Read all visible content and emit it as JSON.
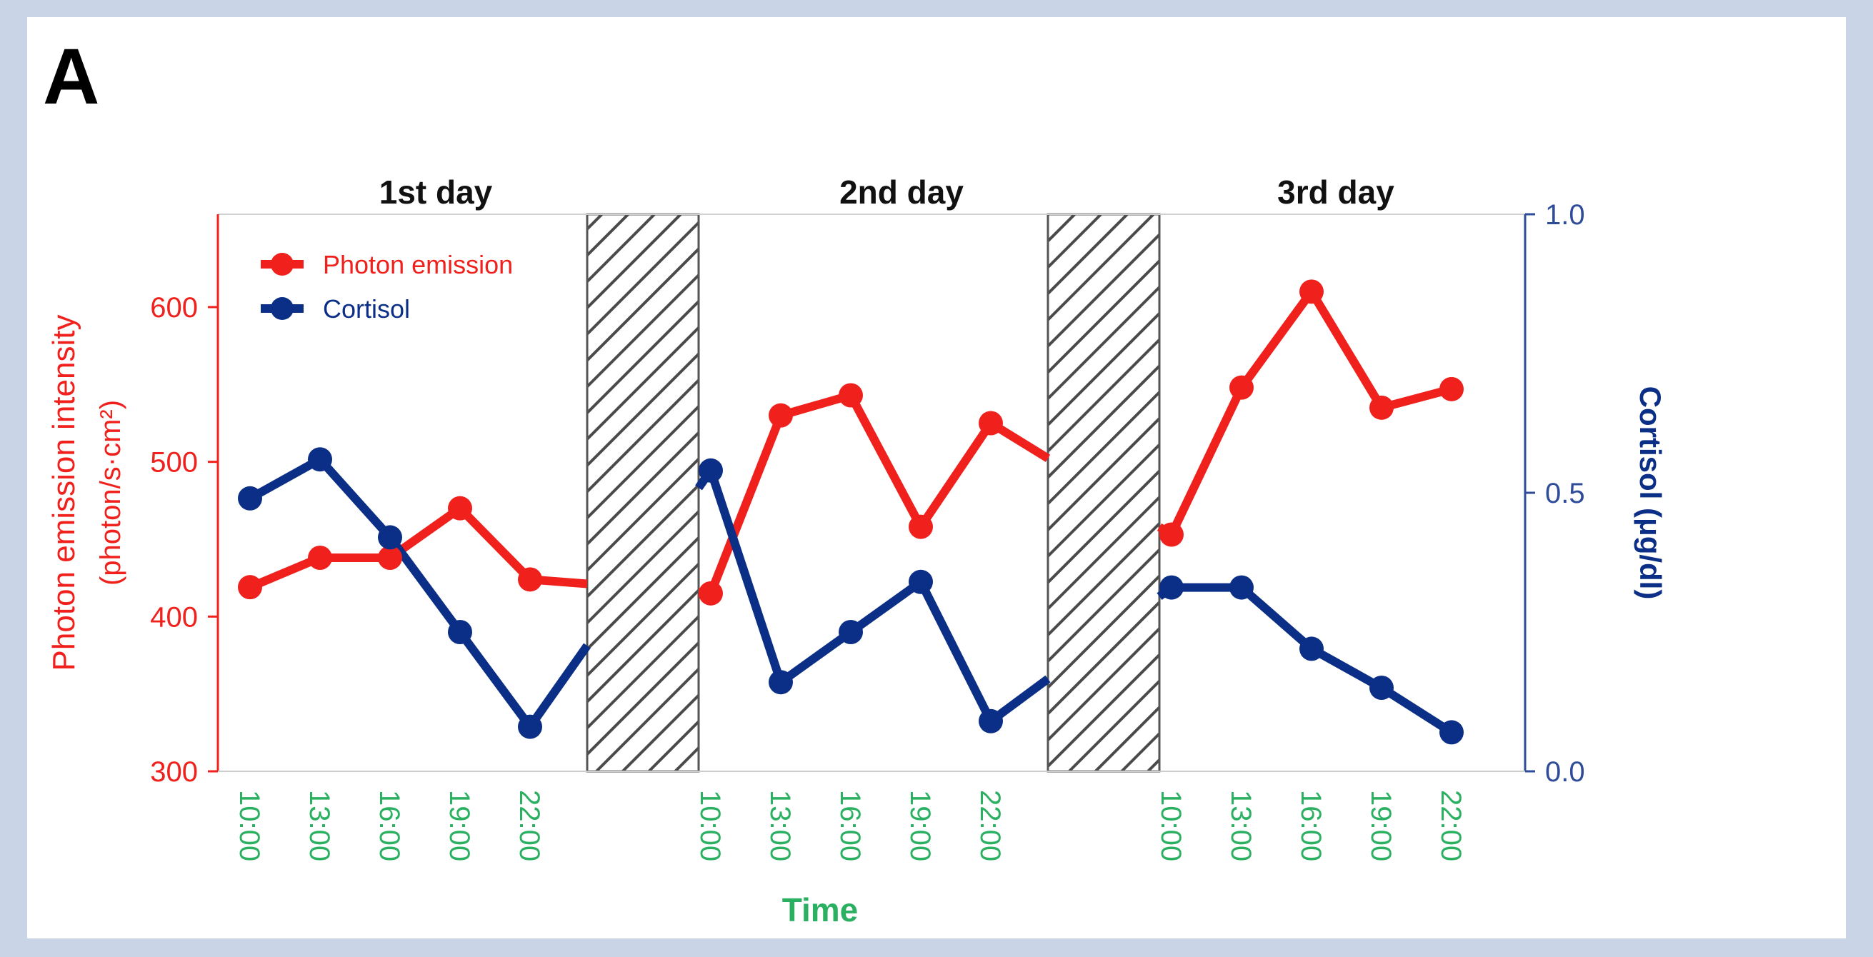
{
  "panel_label": "A",
  "chart_data": {
    "type": "line",
    "panels": [
      "1st day",
      "2nd day",
      "3rd day"
    ],
    "x_tick_labels": [
      "10:00",
      "13:00",
      "16:00",
      "19:00",
      "22:00"
    ],
    "xlabel": "Time",
    "ylabel_left_line1": "Photon emission intensity",
    "ylabel_left_line2": "(photon/s·cm²)",
    "ylabel_right": "Cortisol (μg/dl)",
    "y_left": {
      "min": 300,
      "max": 660,
      "ticks": [
        300,
        400,
        500,
        600
      ]
    },
    "y_right": {
      "min": 0.0,
      "max": 1.0,
      "ticks": [
        "0.0",
        "0.5",
        "1.0"
      ]
    },
    "legend_position": "top-left",
    "series": [
      {
        "name": "Photon emission",
        "axis": "left",
        "color": "#f0211d",
        "days": [
          [
            419,
            438,
            438,
            470,
            424
          ],
          [
            415,
            530,
            543,
            458,
            525
          ],
          [
            453,
            548,
            610,
            535,
            547
          ]
        ]
      },
      {
        "name": "Cortisol",
        "axis": "right",
        "color": "#0b2e86",
        "days": [
          [
            0.49,
            0.56,
            0.42,
            0.25,
            0.08
          ],
          [
            0.54,
            0.16,
            0.25,
            0.34,
            0.09
          ],
          [
            0.33,
            0.33,
            0.22,
            0.15,
            0.07
          ]
        ]
      }
    ],
    "colors": {
      "left_axis": "#f0211d",
      "right_axis": "#2e4c9a",
      "x_ticks": "#2bb061",
      "frame_border": "#c9d4e6"
    }
  }
}
